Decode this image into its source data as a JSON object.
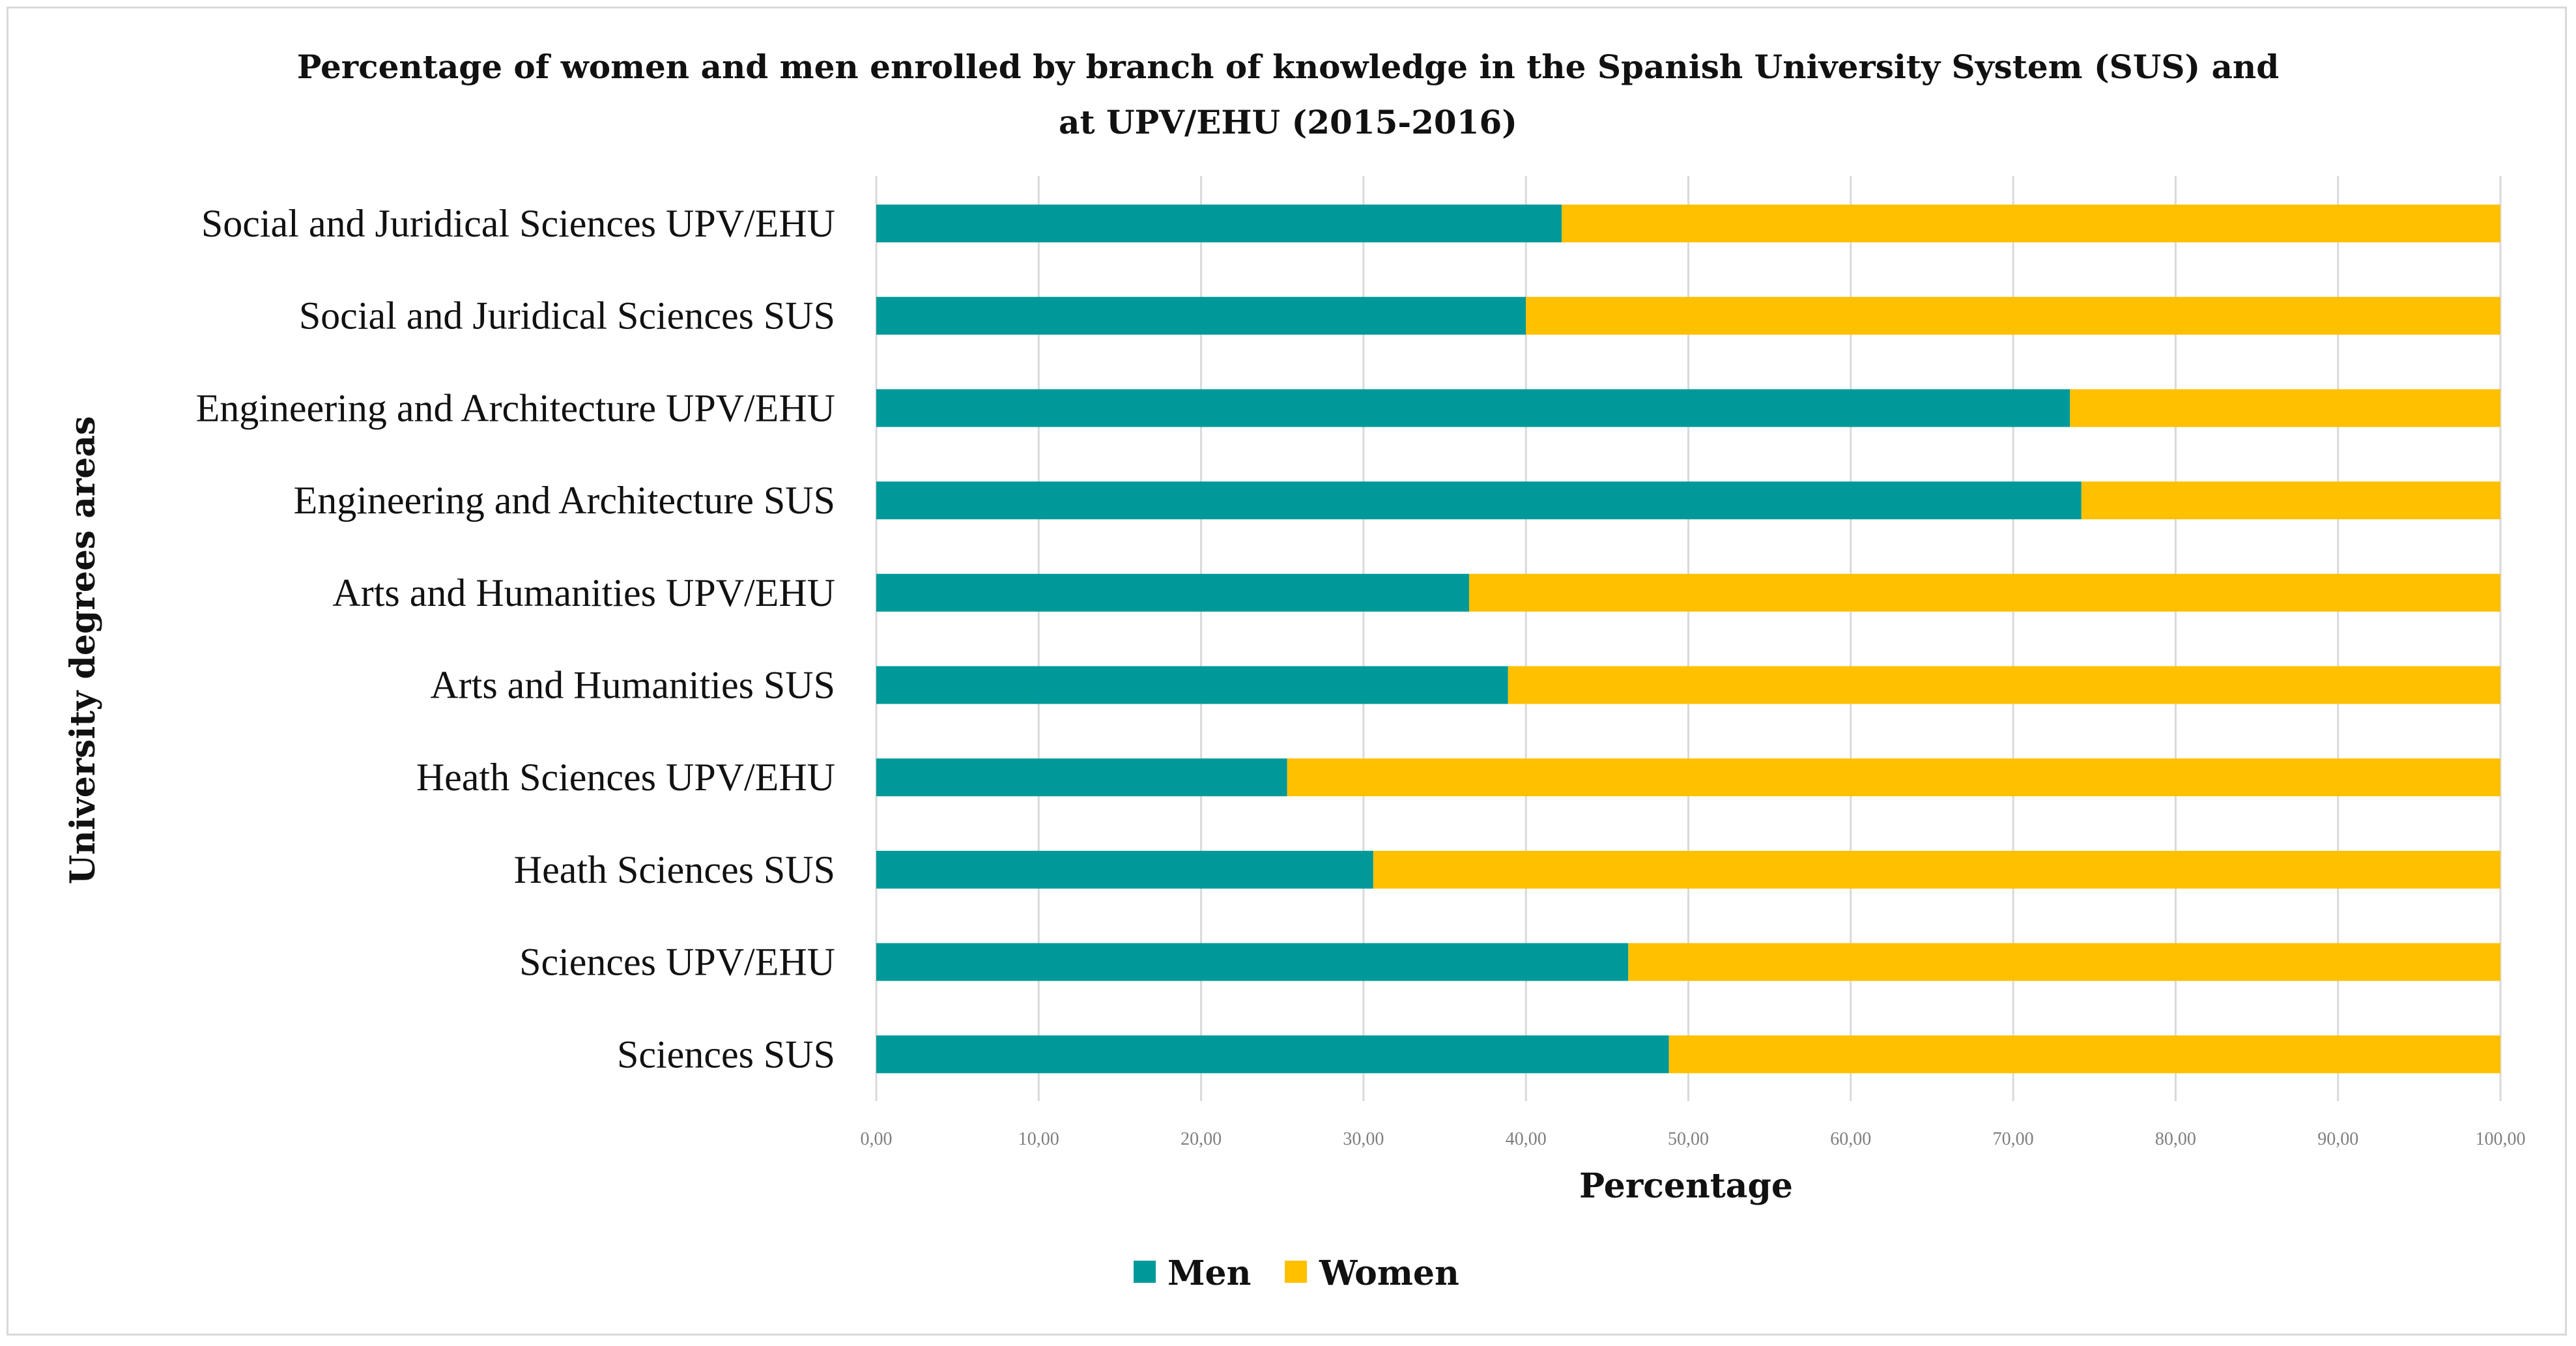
{
  "chart_data": {
    "type": "bar",
    "orientation": "horizontal",
    "stacked": true,
    "title_lines": [
      "Percentage of women and men enrolled by branch of knowledge in the Spanish University System (SUS) and",
      "at UPV/EHU (2015-2016)"
    ],
    "xlabel": "Percentage",
    "ylabel": "University degrees areas",
    "xlim": [
      0,
      100
    ],
    "xticks": [
      0,
      10,
      20,
      30,
      40,
      50,
      60,
      70,
      80,
      90,
      100
    ],
    "xtick_labels": [
      "0,00",
      "10,00",
      "20,00",
      "30,00",
      "40,00",
      "50,00",
      "60,00",
      "70,00",
      "80,00",
      "90,00",
      "100,00"
    ],
    "grid": true,
    "legend_position": "bottom-center",
    "categories": [
      "Social and Juridical Sciences UPV/EHU",
      "Social and Juridical Sciences SUS",
      "Engineering and Architecture UPV/EHU",
      "Engineering and Architecture SUS",
      "Arts and Humanities UPV/EHU",
      "Arts and Humanities SUS",
      "Heath Sciences UPV/EHU",
      "Heath Sciences SUS",
      "Sciences UPV/EHU",
      "Sciences SUS"
    ],
    "series": [
      {
        "name": "Men",
        "color": "#009999",
        "values": [
          42.2,
          40.0,
          73.5,
          74.2,
          36.5,
          38.9,
          25.3,
          30.6,
          46.3,
          48.8
        ]
      },
      {
        "name": "Women",
        "color": "#ffc000",
        "values": [
          57.8,
          60.0,
          26.5,
          25.8,
          63.5,
          61.1,
          74.7,
          69.4,
          53.7,
          51.2
        ]
      }
    ]
  }
}
